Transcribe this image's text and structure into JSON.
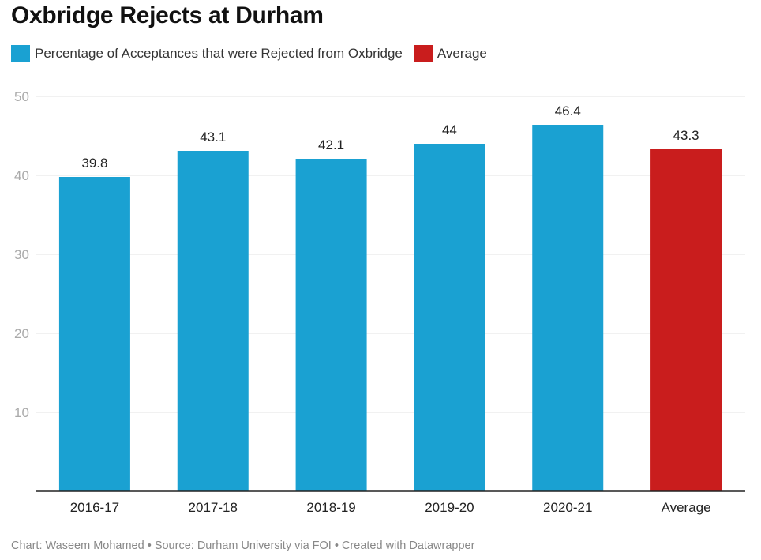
{
  "title": "Oxbridge Rejects at Durham",
  "footer": "Chart: Waseem Mohamed • Source: Durham University via FOI • Created with Datawrapper",
  "colors": {
    "series": "#1aa1d2",
    "average": "#c91d1d",
    "grid": "#e3e3e3",
    "axis": "#222222",
    "tick_text": "#aaaaaa",
    "label_text": "#222222"
  },
  "legend": [
    {
      "label": "Percentage of Acceptances that were Rejected from Oxbridge",
      "color": "#1aa1d2"
    },
    {
      "label": "Average",
      "color": "#c91d1d"
    }
  ],
  "chart_data": {
    "type": "bar",
    "title": "Oxbridge Rejects at Durham",
    "xlabel": "",
    "ylabel": "",
    "ylim": [
      0,
      50
    ],
    "yticks": [
      10,
      20,
      30,
      40,
      50
    ],
    "grid": true,
    "legend_position": "top-left",
    "categories": [
      "2016-17",
      "2017-18",
      "2018-19",
      "2019-20",
      "2020-21",
      "Average"
    ],
    "values": [
      39.8,
      43.1,
      42.1,
      44,
      46.4,
      43.3
    ],
    "labels": [
      "39.8",
      "43.1",
      "42.1",
      "44",
      "46.4",
      "43.3"
    ],
    "series_names": [
      "Percentage of Acceptances that were Rejected from Oxbridge",
      "Percentage of Acceptances that were Rejected from Oxbridge",
      "Percentage of Acceptances that were Rejected from Oxbridge",
      "Percentage of Acceptances that were Rejected from Oxbridge",
      "Percentage of Acceptances that were Rejected from Oxbridge",
      "Average"
    ]
  }
}
